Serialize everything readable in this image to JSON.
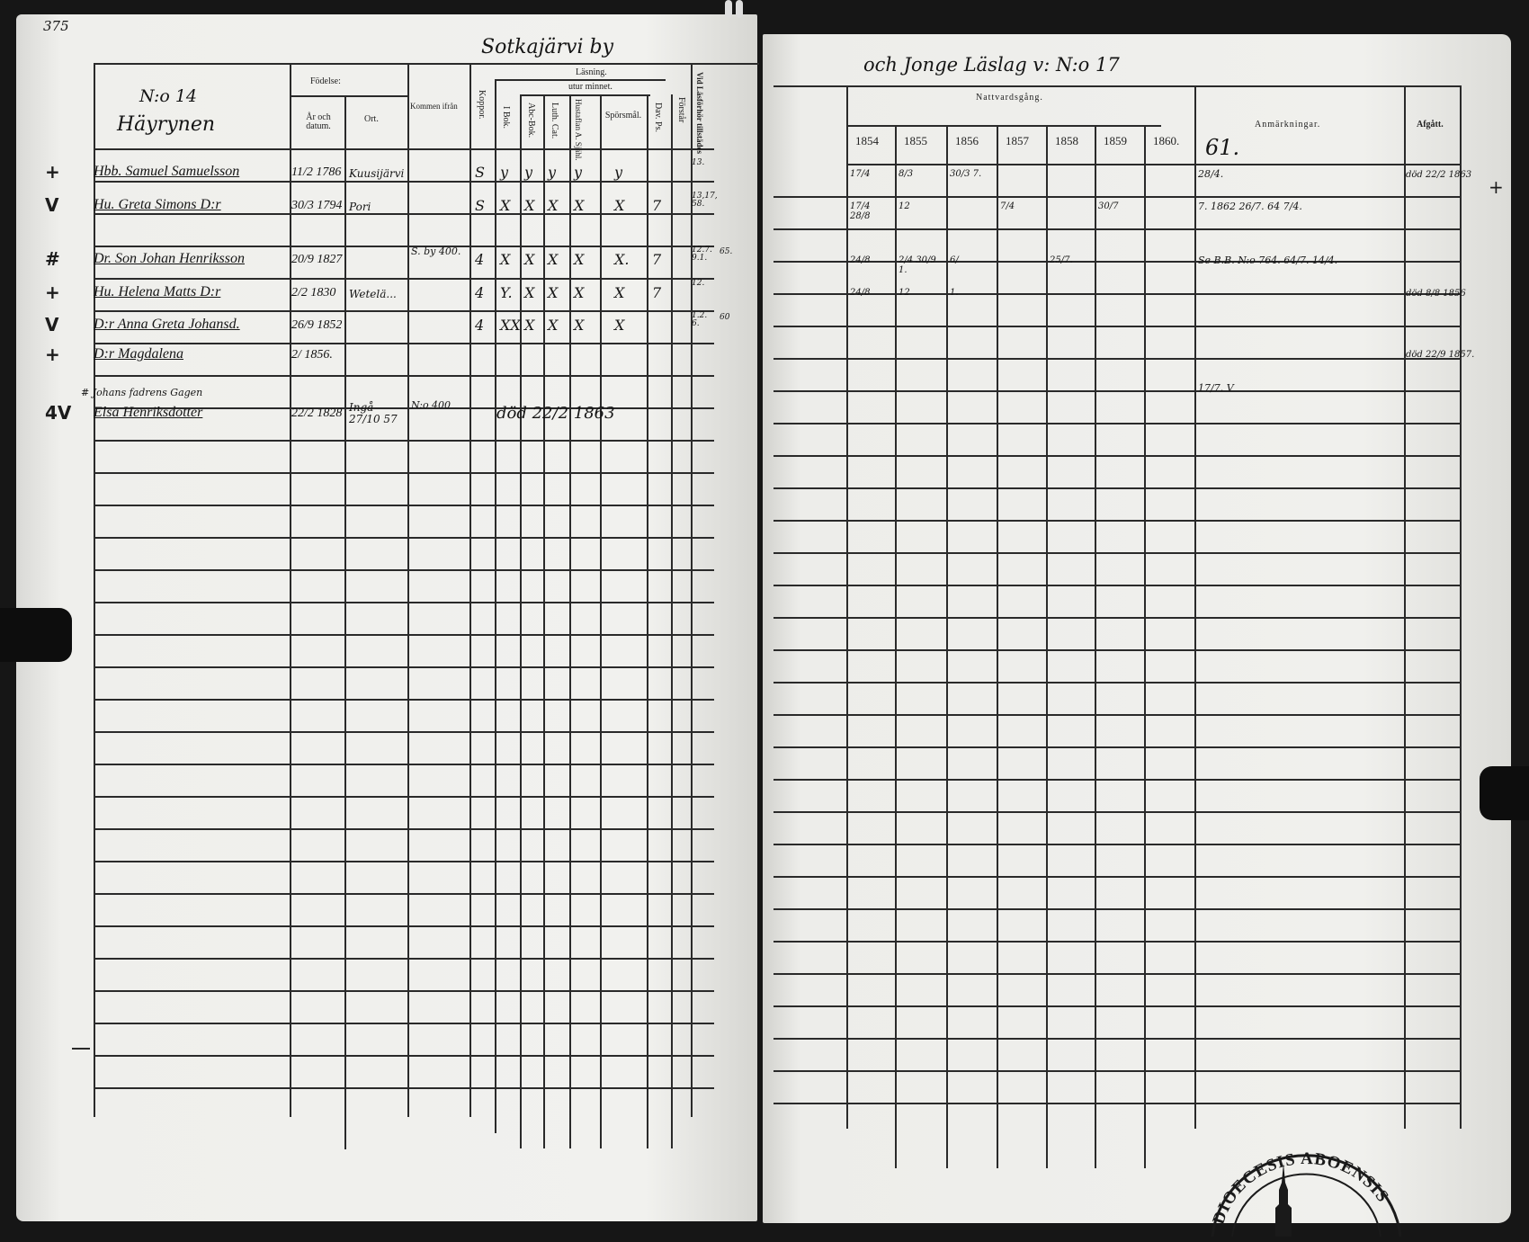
{
  "left_page": {
    "page_number": "375",
    "village_heading": "Sotkajärvi by",
    "household_title": "N:o 14",
    "farm_name": "Häyrynen",
    "columns": {
      "birth_group": "Födelse:",
      "year_date": "År och datum.",
      "place": "Ort.",
      "moved_from": "Kommen ifrån",
      "smallpox": "Koppor.",
      "reading_group": "Läsning.",
      "from_memory": "utur minnet.",
      "in_book": "I Bok.",
      "abc_book": "Abc-Bok.",
      "luther_catechism": "Luth. Cat.",
      "house_table": "Hustaflan A. Sjähl.",
      "questions": "Spörsmål.",
      "psalms": "Dav. Ps.",
      "understanding": "Förstår",
      "exam_attended": "Vid Läsförhör tillstädes"
    },
    "persons": [
      {
        "mark": "+",
        "name": "Hbb. Samuel Samuelsson",
        "birth": "11/2 1786",
        "place": "Kuusijärvi",
        "moved_from": "",
        "smallpox": "S",
        "in_book": "y",
        "abc": "y",
        "luth": "y",
        "house": "y",
        "questions": "y",
        "psalms": "",
        "exam": "13.",
        "exam2": ""
      },
      {
        "mark": "V",
        "name": "Hu. Greta Simons D:r",
        "birth": "30/3 1794",
        "place": "Pori",
        "moved_from": "",
        "smallpox": "S",
        "in_book": "X",
        "abc": "X",
        "luth": "X",
        "house": "X",
        "questions": "X",
        "psalms": "7",
        "exam": "13,17, 58.",
        "exam2": ""
      },
      {
        "mark": "#",
        "name": "Dr. Son Johan Henriksson",
        "birth": "20/9 1827",
        "place": "",
        "moved_from": "S. by 400.",
        "smallpox": "4",
        "in_book": "X",
        "abc": "X",
        "luth": "X",
        "house": "X",
        "questions": "X.",
        "psalms": "7",
        "exam": "12.7. 9.1.",
        "exam2": "65."
      },
      {
        "mark": "+",
        "name": "Hu. Helena Matts D:r",
        "birth": "2/2 1830",
        "place": "Wetelä...",
        "moved_from": "",
        "smallpox": "4",
        "in_book": "Y.",
        "abc": "X",
        "luth": "X",
        "house": "X",
        "questions": "X",
        "psalms": "7",
        "exam": "12.",
        "exam2": ""
      },
      {
        "mark": "V",
        "name": "D:r Anna Greta Johansd.",
        "birth": "26/9 1852",
        "place": "",
        "moved_from": "",
        "smallpox": "4",
        "in_book": "XX",
        "abc": "X",
        "luth": "X",
        "house": "X",
        "questions": "X",
        "psalms": "",
        "exam": "1.2. 6.",
        "exam2": "60"
      },
      {
        "mark": "+",
        "name": "D:r Magdalena",
        "birth": "2/ 1856.",
        "place": "",
        "moved_from": "",
        "smallpox": "",
        "in_book": "",
        "abc": "",
        "luth": "",
        "house": "",
        "questions": "",
        "psalms": "",
        "exam": "",
        "exam2": ""
      },
      {
        "mark": "4V",
        "note": "# Johans fadrens Gagen",
        "name": "Elsa Henriksdotter",
        "birth": "22/2 1828",
        "place": "Ingå 27/10 57",
        "moved_from": "N:o 400",
        "smallpox": "",
        "reading_note": "död 22/2 1863",
        "in_book": "",
        "abc": "",
        "luth": "",
        "house": "",
        "questions": "",
        "psalms": "",
        "exam": "",
        "exam2": ""
      }
    ]
  },
  "right_page": {
    "heading": "och Jonge Läslag v: N:o 17",
    "columns": {
      "communion": "Nattvardsgång.",
      "years": [
        "1854",
        "1855",
        "1856",
        "1857",
        "1858",
        "1859",
        "1860."
      ],
      "remarks": "Anmärkningar.",
      "remarks_year": "61.",
      "departed": "Afgått."
    },
    "rows": [
      {
        "years": [
          "17/4",
          "8/3",
          "30/3 7.",
          "",
          "",
          "",
          ""
        ],
        "remarks": "28/4.",
        "departed": "död 22/2 1863"
      },
      {
        "years": [
          "17/4 28/8",
          "12",
          "",
          "7/4",
          "",
          "30/7",
          ""
        ],
        "remarks": "7.   1862 26/7.   64 7/4.",
        "departed": ""
      },
      {
        "years": [
          "24/8",
          "2/4 30/9 1.",
          "6/",
          "",
          "25/7.",
          "",
          ""
        ],
        "remarks": "Se B.B. N:o 764. 64/7.  14/4.",
        "departed": ""
      },
      {
        "years": [
          "24/8",
          "12",
          "1.",
          "",
          "",
          "",
          ""
        ],
        "remarks": "",
        "departed": "död 8/8 1856"
      },
      {
        "years": [
          "",
          "",
          "",
          "",
          "",
          "",
          ""
        ],
        "remarks": "",
        "departed": ""
      },
      {
        "years": [
          "",
          "",
          "",
          "",
          "",
          "",
          ""
        ],
        "remarks": "",
        "departed": "död 22/9 1857."
      },
      {
        "years": [
          "",
          "",
          "",
          "",
          "",
          "",
          ""
        ],
        "remarks": "17/7. V",
        "departed": ""
      }
    ],
    "margin_mark": "+"
  },
  "stamp": {
    "text": "DIOECESIS ABOENSIS"
  }
}
